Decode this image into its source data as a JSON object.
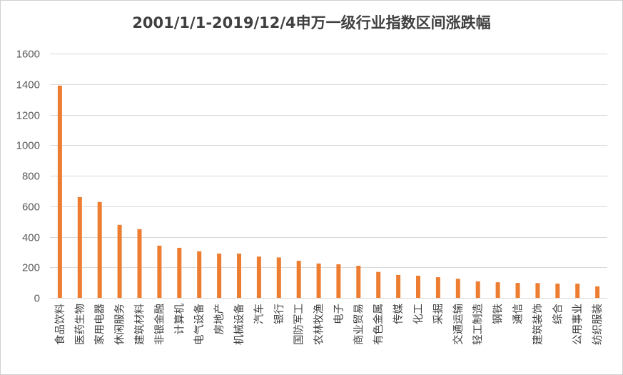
{
  "chart_data": {
    "type": "bar",
    "title": "2001/1/1-2019/12/4申万一级行业指数区间涨跌幅",
    "xlabel": "",
    "ylabel": "",
    "ylim": [
      0,
      1600
    ],
    "yticks": [
      0,
      200,
      400,
      600,
      800,
      1000,
      1200,
      1400,
      1600
    ],
    "grid": true,
    "legend": "none",
    "bar_color": "#ED7D31",
    "grid_color": "#D9D9D9",
    "categories": [
      "食品饮料",
      "医药生物",
      "家用电器",
      "休闲服务",
      "建筑材料",
      "非银金融",
      "计算机",
      "电气设备",
      "房地产",
      "机械设备",
      "汽车",
      "银行",
      "国防军工",
      "农林牧渔",
      "电子",
      "商业贸易",
      "有色金属",
      "传媒",
      "化工",
      "采掘",
      "交通运输",
      "轻工制造",
      "钢铁",
      "通信",
      "建筑装饰",
      "综合",
      "公用事业",
      "纺织服装"
    ],
    "values": [
      1390,
      660,
      628,
      478,
      450,
      342,
      328,
      305,
      290,
      290,
      270,
      265,
      243,
      225,
      220,
      210,
      170,
      150,
      145,
      135,
      125,
      108,
      102,
      98,
      97,
      93,
      93,
      75
    ]
  }
}
